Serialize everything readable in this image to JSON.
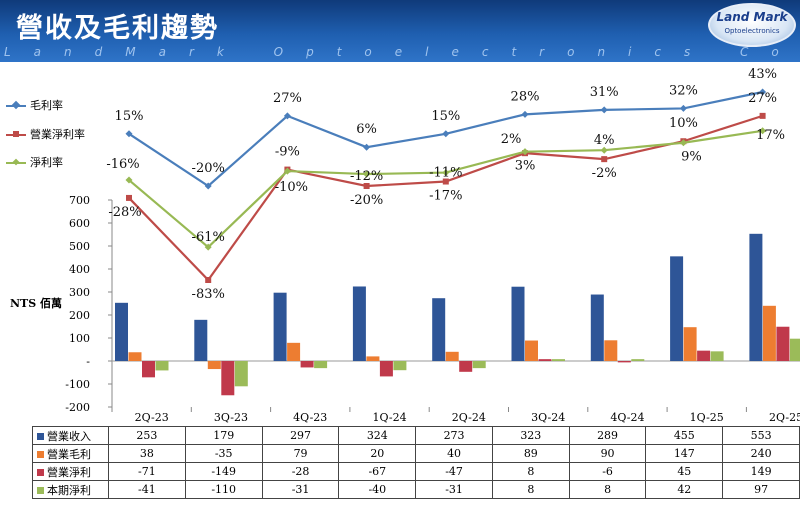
{
  "header": {
    "title": "營收及毛利趨勢",
    "subtitle": "LandMark Optoelectronics Corporation",
    "logo_main": "Land Mark",
    "logo_sub": "Optoelectronics"
  },
  "unit_label": "NTS 佰萬",
  "colors": {
    "revenue": "#2e5597",
    "gross_profit": "#ed7d31",
    "operating_profit": "#c0394b",
    "net_profit": "#9bbb59",
    "gross_margin": "#4a7ebb",
    "operating_margin": "#be4b48",
    "net_margin": "#98b954"
  },
  "chart_data": {
    "type": "bar",
    "categories": [
      "2Q-23",
      "3Q-23",
      "4Q-23",
      "1Q-24",
      "2Q-24",
      "3Q-24",
      "4Q-24",
      "1Q-25",
      "2Q-25"
    ],
    "ylim": [
      -200,
      700
    ],
    "yticks": [
      "700",
      "600",
      "500",
      "400",
      "300",
      "200",
      "100",
      "-",
      "-100",
      "-200"
    ],
    "series": [
      {
        "name": "營業收入",
        "key": "revenue",
        "values": [
          253,
          179,
          297,
          324,
          273,
          323,
          289,
          455,
          553
        ]
      },
      {
        "name": "營業毛利",
        "key": "gross_profit",
        "values": [
          38,
          -35,
          79,
          20,
          40,
          89,
          90,
          147,
          240
        ]
      },
      {
        "name": "營業淨利",
        "key": "operating_profit",
        "values": [
          -71,
          -149,
          -28,
          -67,
          -47,
          8,
          -6,
          45,
          149
        ]
      },
      {
        "name": "本期淨利",
        "key": "net_profit",
        "values": [
          -41,
          -110,
          -31,
          -40,
          -31,
          8,
          8,
          42,
          97
        ]
      }
    ],
    "lines": [
      {
        "name": "毛利率",
        "key": "gross_margin",
        "values": [
          15,
          -20,
          27,
          6,
          15,
          28,
          31,
          32,
          43
        ],
        "labels": [
          "15%",
          "-20%",
          "27%",
          "6%",
          "15%",
          "28%",
          "31%",
          "32%",
          "43%"
        ]
      },
      {
        "name": "營業淨利率",
        "key": "operating_margin",
        "values": [
          -28,
          -83,
          -9,
          -20,
          -17,
          2,
          -2,
          10,
          27
        ],
        "labels": [
          "-28%",
          "-83%",
          "-9%",
          "-20%",
          "-17%",
          "2%",
          "-2%",
          "10%",
          "27%"
        ]
      },
      {
        "name": "淨利率",
        "key": "net_margin",
        "values": [
          -16,
          -61,
          -10,
          -12,
          -11,
          3,
          4,
          9,
          17
        ],
        "labels": [
          "-16%",
          "-61%",
          "-10%",
          "-12%",
          "-11%",
          "3%",
          "4%",
          "9%",
          "17%"
        ]
      }
    ]
  }
}
